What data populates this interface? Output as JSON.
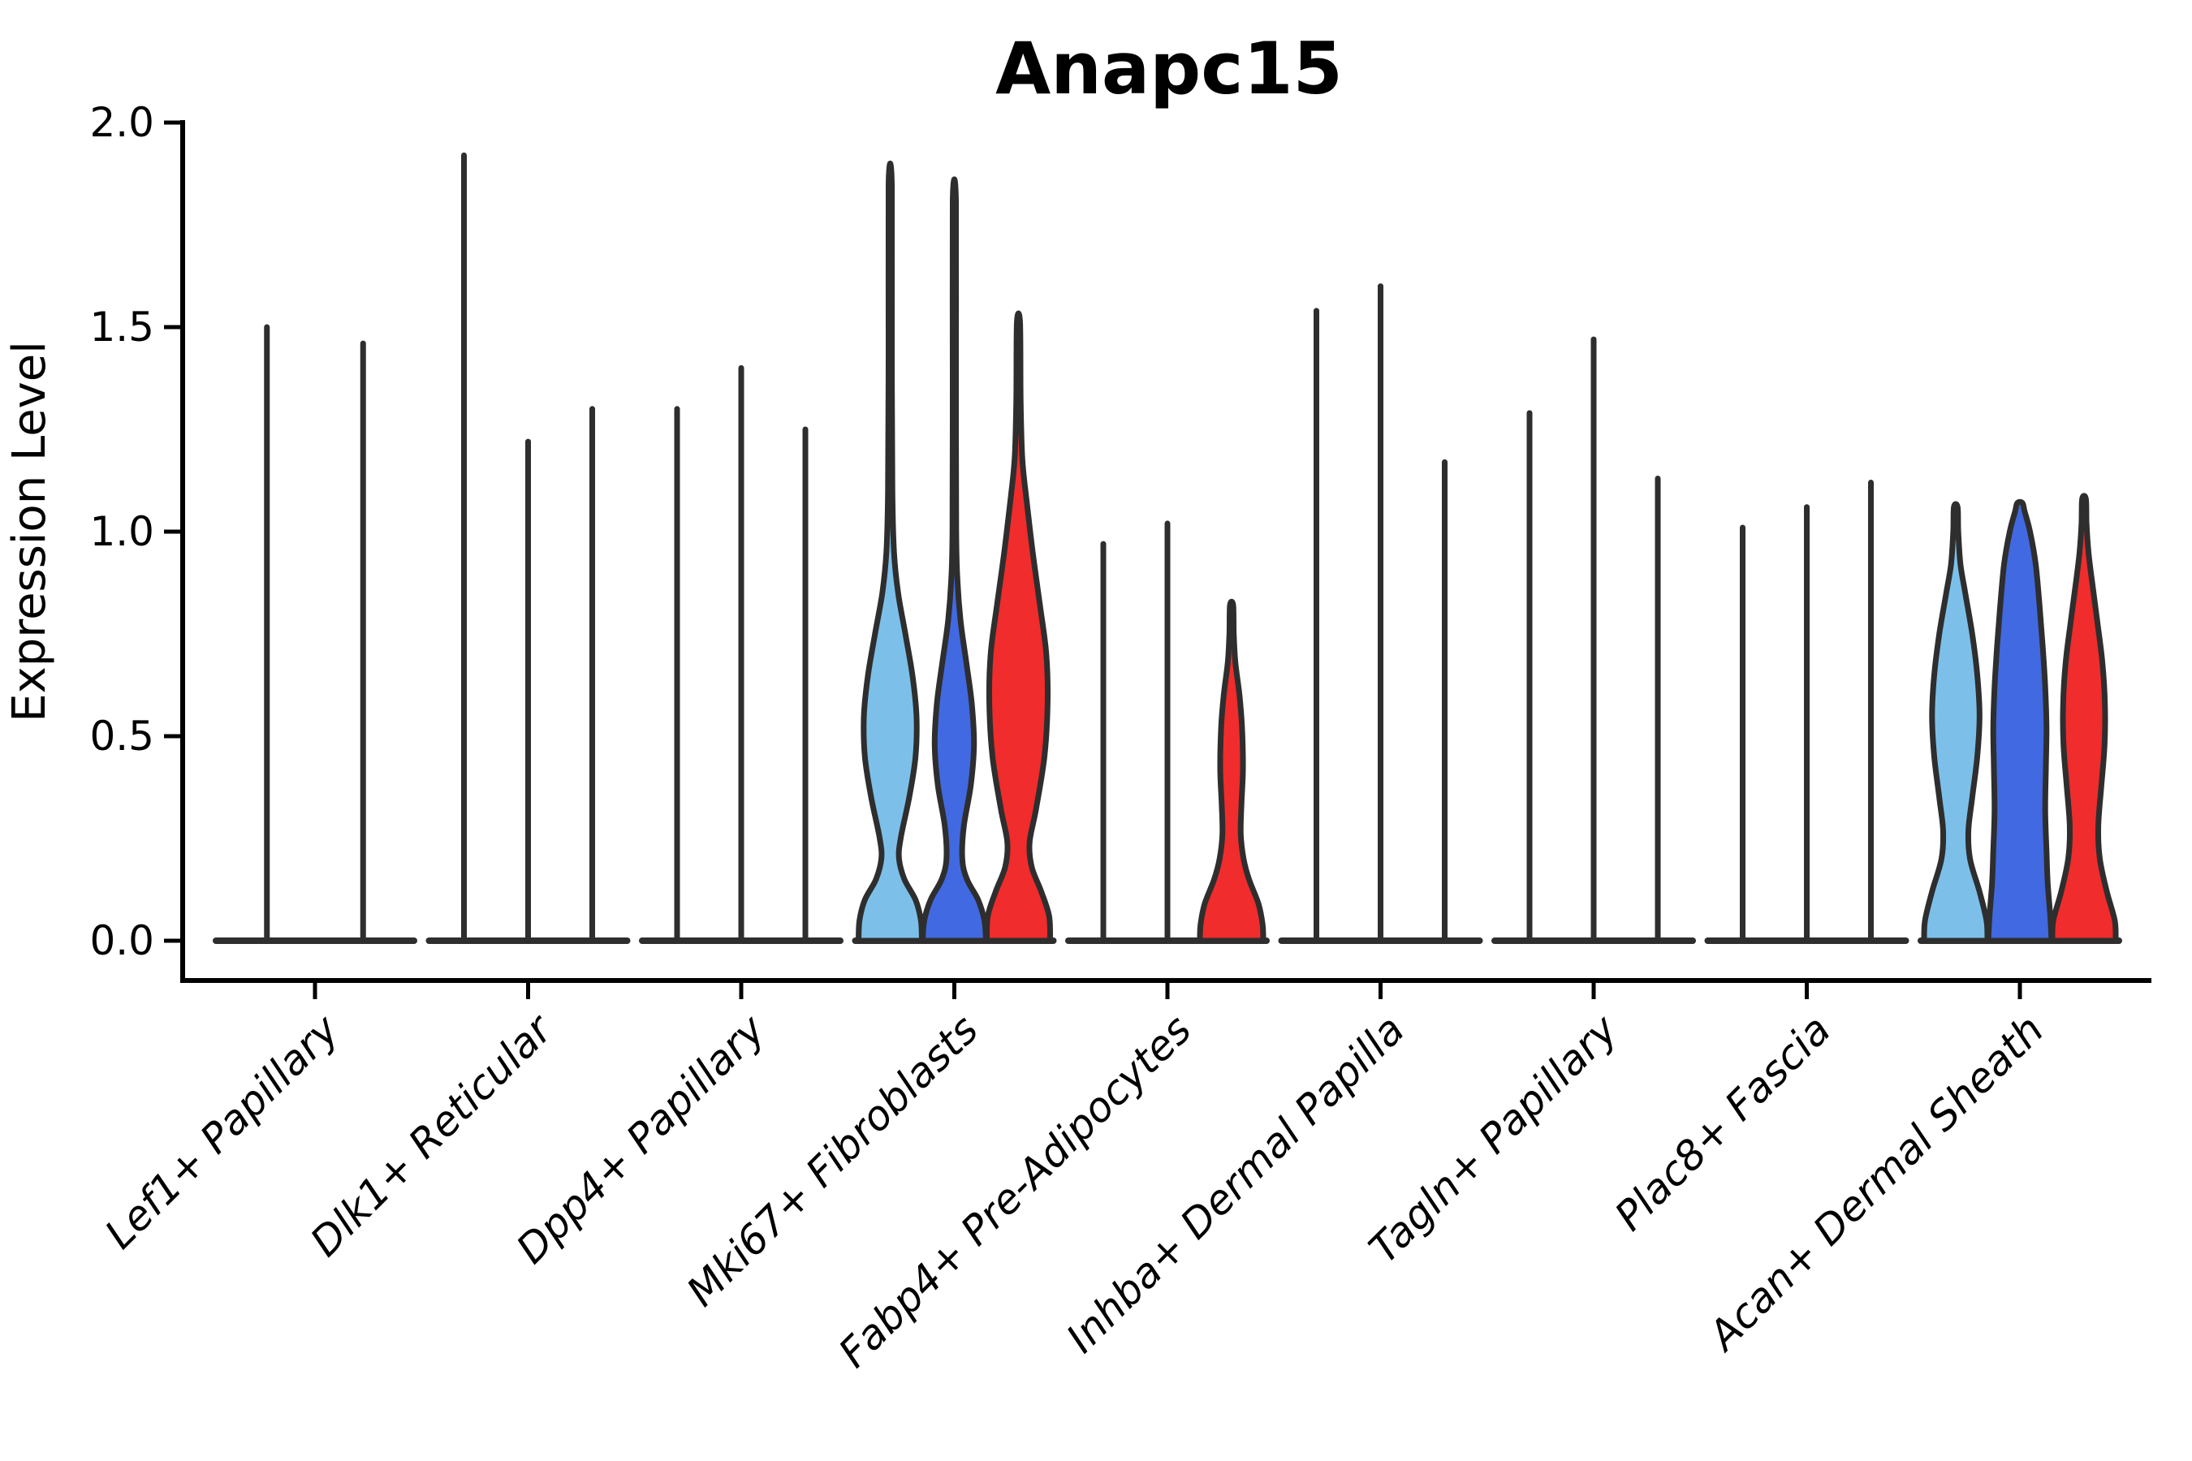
{
  "chart_data": {
    "type": "violin",
    "title": "Anapc15",
    "ylabel": "Expression Level",
    "xlabel": "",
    "ylim": [
      0.0,
      2.0
    ],
    "yticks": [
      "0.0",
      "0.5",
      "1.0",
      "1.5",
      "2.0"
    ],
    "ytick_values": [
      0.0,
      0.5,
      1.0,
      1.5,
      2.0
    ],
    "grid": false,
    "legend_position": "none",
    "background_color": "#ffffff",
    "outline_color": "#2E2E2E",
    "axis_color": "#000000",
    "palette": {
      "lightblue": "#7CC0EA",
      "blue": "#4169E1",
      "red": "#F02C2C"
    },
    "categories": [
      "Lef1+ Papillary",
      "Dlk1+ Reticular",
      "Dpp4+ Papillary",
      "Mki67+ Fibroblasts",
      "Fabp4+ Pre-Adipocytes",
      "Inhba+ Dermal Papilla",
      "Tagln+ Papillary",
      "Plac8+ Fascia",
      "Acan+ Dermal Sheath"
    ],
    "groups": [
      {
        "category": "Lef1+ Papillary",
        "violins": [
          {
            "max": 1.5,
            "shape": "spike"
          },
          {
            "max": 1.46,
            "shape": "spike"
          }
        ]
      },
      {
        "category": "Dlk1+ Reticular",
        "violins": [
          {
            "max": 1.92,
            "shape": "spike"
          },
          {
            "max": 1.22,
            "shape": "spike"
          },
          {
            "max": 1.3,
            "shape": "spike"
          }
        ]
      },
      {
        "category": "Dpp4+ Papillary",
        "violins": [
          {
            "max": 1.3,
            "shape": "spike"
          },
          {
            "max": 1.4,
            "shape": "spike"
          },
          {
            "max": 1.25,
            "shape": "spike"
          }
        ]
      },
      {
        "category": "Mki67+ Fibroblasts",
        "violins": [
          {
            "max": 1.85,
            "shape": "violin",
            "color": "#7CC0EA",
            "profile": [
              [
                0,
                1.0
              ],
              [
                0.05,
                0.97
              ],
              [
                0.1,
                0.8
              ],
              [
                0.15,
                0.45
              ],
              [
                0.2,
                0.28
              ],
              [
                0.25,
                0.33
              ],
              [
                0.35,
                0.6
              ],
              [
                0.45,
                0.8
              ],
              [
                0.55,
                0.83
              ],
              [
                0.65,
                0.7
              ],
              [
                0.75,
                0.48
              ],
              [
                0.85,
                0.25
              ],
              [
                0.95,
                0.12
              ],
              [
                1.1,
                0.07
              ],
              [
                1.45,
                0.05
              ],
              [
                1.85,
                0.05
              ]
            ]
          },
          {
            "max": 1.81,
            "shape": "violin",
            "color": "#4169E1",
            "profile": [
              [
                0,
                1.0
              ],
              [
                0.05,
                0.95
              ],
              [
                0.1,
                0.75
              ],
              [
                0.15,
                0.4
              ],
              [
                0.2,
                0.25
              ],
              [
                0.28,
                0.3
              ],
              [
                0.38,
                0.52
              ],
              [
                0.48,
                0.62
              ],
              [
                0.58,
                0.55
              ],
              [
                0.68,
                0.38
              ],
              [
                0.78,
                0.2
              ],
              [
                0.88,
                0.1
              ],
              [
                1.0,
                0.06
              ],
              [
                1.4,
                0.05
              ],
              [
                1.81,
                0.05
              ]
            ]
          },
          {
            "max": 1.51,
            "shape": "violin",
            "color": "#F02C2C",
            "profile": [
              [
                0,
                1.0
              ],
              [
                0.06,
                0.97
              ],
              [
                0.12,
                0.72
              ],
              [
                0.18,
                0.42
              ],
              [
                0.24,
                0.35
              ],
              [
                0.32,
                0.55
              ],
              [
                0.45,
                0.82
              ],
              [
                0.58,
                0.92
              ],
              [
                0.7,
                0.88
              ],
              [
                0.82,
                0.68
              ],
              [
                0.95,
                0.45
              ],
              [
                1.08,
                0.25
              ],
              [
                1.18,
                0.12
              ],
              [
                1.32,
                0.07
              ],
              [
                1.51,
                0.05
              ]
            ]
          }
        ]
      },
      {
        "category": "Fabp4+ Pre-Adipocytes",
        "violins": [
          {
            "max": 0.97,
            "shape": "spike"
          },
          {
            "max": 1.02,
            "shape": "spike"
          },
          {
            "max": 0.82,
            "shape": "violin",
            "color": "#F02C2C",
            "profile": [
              [
                0,
                1.0
              ],
              [
                0.04,
                0.98
              ],
              [
                0.09,
                0.85
              ],
              [
                0.15,
                0.55
              ],
              [
                0.2,
                0.38
              ],
              [
                0.26,
                0.29
              ],
              [
                0.33,
                0.31
              ],
              [
                0.42,
                0.36
              ],
              [
                0.52,
                0.33
              ],
              [
                0.6,
                0.25
              ],
              [
                0.68,
                0.12
              ],
              [
                0.75,
                0.07
              ],
              [
                0.82,
                0.05
              ]
            ]
          }
        ]
      },
      {
        "category": "Inhba+ Dermal Papilla",
        "violins": [
          {
            "max": 1.54,
            "shape": "spike"
          },
          {
            "max": 1.6,
            "shape": "spike"
          },
          {
            "max": 1.17,
            "shape": "spike"
          }
        ]
      },
      {
        "category": "Tagln+ Papillary",
        "violins": [
          {
            "max": 1.29,
            "shape": "spike"
          },
          {
            "max": 1.47,
            "shape": "spike"
          },
          {
            "max": 1.13,
            "shape": "spike"
          }
        ]
      },
      {
        "category": "Plac8+ Fascia",
        "violins": [
          {
            "max": 1.01,
            "shape": "spike"
          },
          {
            "max": 1.06,
            "shape": "spike"
          },
          {
            "max": 1.12,
            "shape": "spike"
          }
        ]
      },
      {
        "category": "Acan+ Dermal Sheath",
        "violins": [
          {
            "max": 1.06,
            "shape": "violin",
            "color": "#7CC0EA",
            "profile": [
              [
                0,
                1.0
              ],
              [
                0.05,
                0.97
              ],
              [
                0.12,
                0.75
              ],
              [
                0.2,
                0.45
              ],
              [
                0.27,
                0.4
              ],
              [
                0.35,
                0.52
              ],
              [
                0.45,
                0.68
              ],
              [
                0.55,
                0.75
              ],
              [
                0.65,
                0.68
              ],
              [
                0.75,
                0.52
              ],
              [
                0.85,
                0.3
              ],
              [
                0.92,
                0.15
              ],
              [
                1.0,
                0.08
              ],
              [
                1.06,
                0.06
              ]
            ]
          },
          {
            "max": 1.07,
            "shape": "violin",
            "color": "#4169E1",
            "profile": [
              [
                0,
                1.0
              ],
              [
                0.06,
                0.96
              ],
              [
                0.14,
                0.88
              ],
              [
                0.22,
                0.84
              ],
              [
                0.32,
                0.8
              ],
              [
                0.42,
                0.82
              ],
              [
                0.52,
                0.84
              ],
              [
                0.62,
                0.8
              ],
              [
                0.72,
                0.72
              ],
              [
                0.82,
                0.62
              ],
              [
                0.92,
                0.5
              ],
              [
                1.0,
                0.32
              ],
              [
                1.05,
                0.15
              ],
              [
                1.07,
                0.08
              ]
            ]
          },
          {
            "max": 1.08,
            "shape": "violin",
            "color": "#F02C2C",
            "profile": [
              [
                0,
                1.0
              ],
              [
                0.05,
                0.97
              ],
              [
                0.12,
                0.72
              ],
              [
                0.2,
                0.5
              ],
              [
                0.28,
                0.45
              ],
              [
                0.38,
                0.55
              ],
              [
                0.48,
                0.65
              ],
              [
                0.58,
                0.66
              ],
              [
                0.68,
                0.58
              ],
              [
                0.78,
                0.42
              ],
              [
                0.88,
                0.25
              ],
              [
                0.95,
                0.14
              ],
              [
                1.02,
                0.08
              ],
              [
                1.08,
                0.06
              ]
            ]
          }
        ]
      }
    ]
  }
}
